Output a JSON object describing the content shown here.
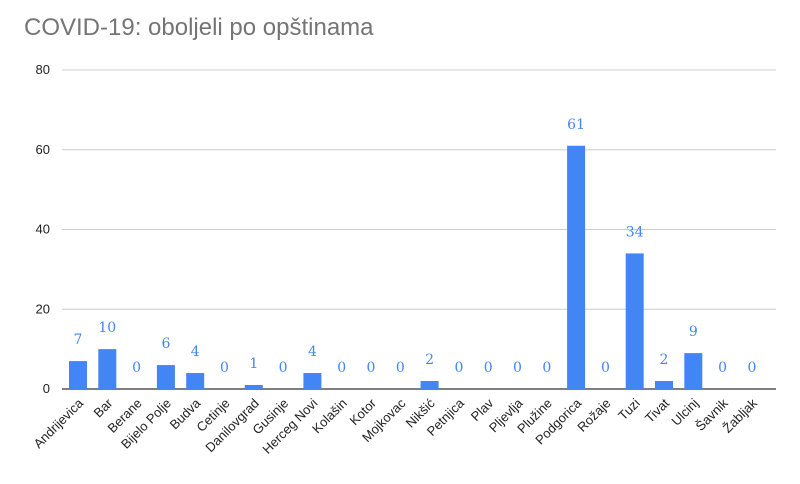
{
  "chart_data": {
    "type": "bar",
    "title": "COVID-19: oboljeli po opštinama",
    "xlabel": "",
    "ylabel": "",
    "ylim": [
      0,
      80
    ],
    "yticks": [
      0,
      20,
      40,
      60,
      80
    ],
    "grid": true,
    "legend": "none",
    "bar_color": "#4285f4",
    "label_color": "#4285f4",
    "gridline_color": "#cccccc",
    "categories": [
      "Andrijevica",
      "Bar",
      "Berane",
      "Bijelo Polje",
      "Budva",
      "Cetinje",
      "Danilovgrad",
      "Gusinje",
      "Herceg Novi",
      "Kolašin",
      "Kotor",
      "Mojkovac",
      "Nikšić",
      "Petnjica",
      "Plav",
      "Pljevlja",
      "Plužine",
      "Podgorica",
      "Rožaje",
      "Tuzi",
      "Tivat",
      "Ulcinj",
      "Šavnik",
      "Žabljak"
    ],
    "values": [
      7,
      10,
      0,
      6,
      4,
      0,
      1,
      0,
      4,
      0,
      0,
      0,
      2,
      0,
      0,
      0,
      0,
      61,
      0,
      34,
      2,
      9,
      0,
      0
    ]
  }
}
